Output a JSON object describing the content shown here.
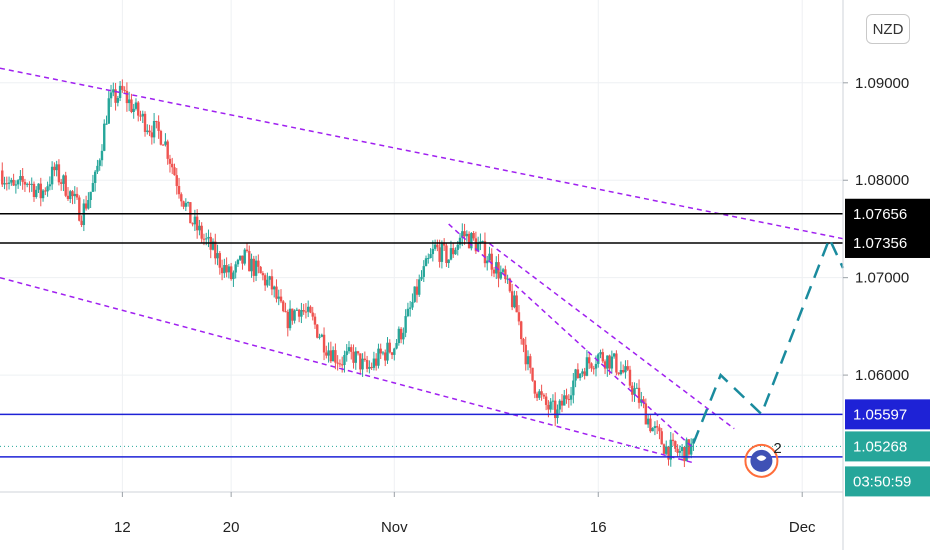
{
  "currency": "NZD",
  "chart_data": {
    "type": "candlestick",
    "x_axis": {
      "type": "date",
      "range": [
        "2022-10-03",
        "2022-12-04"
      ],
      "ticks": [
        {
          "date": "2022-10-12",
          "label": "12"
        },
        {
          "date": "2022-10-20",
          "label": "20"
        },
        {
          "date": "2022-11-01",
          "label": "Nov"
        },
        {
          "date": "2022-11-16",
          "label": "16"
        },
        {
          "date": "2022-12-01",
          "label": "Dec"
        }
      ]
    },
    "y_axis": {
      "range": [
        1.048,
        1.0985
      ],
      "ticks": [
        {
          "value": 1.09,
          "label": "1.09000"
        },
        {
          "value": 1.08,
          "label": "1.08000"
        },
        {
          "value": 1.07,
          "label": "1.07000"
        },
        {
          "value": 1.06,
          "label": "1.06000"
        }
      ]
    },
    "price_path": [
      [
        "2022-10-03",
        1.081
      ],
      [
        "2022-10-04",
        1.079
      ],
      [
        "2022-10-05",
        1.08
      ],
      [
        "2022-10-06",
        1.0785
      ],
      [
        "2022-10-07",
        1.081
      ],
      [
        "2022-10-08",
        1.079
      ],
      [
        "2022-10-09",
        1.0765
      ],
      [
        "2022-10-10",
        1.08
      ],
      [
        "2022-10-11",
        1.088
      ],
      [
        "2022-10-12",
        1.089
      ],
      [
        "2022-10-13",
        1.087
      ],
      [
        "2022-10-14",
        1.0855
      ],
      [
        "2022-10-15",
        1.0845
      ],
      [
        "2022-10-16",
        1.08
      ],
      [
        "2022-10-17",
        1.076
      ],
      [
        "2022-10-18",
        1.074
      ],
      [
        "2022-10-19",
        1.072
      ],
      [
        "2022-10-20",
        1.07
      ],
      [
        "2022-10-21",
        1.072
      ],
      [
        "2022-10-22",
        1.0705
      ],
      [
        "2022-10-23",
        1.069
      ],
      [
        "2022-10-24",
        1.0655
      ],
      [
        "2022-10-25",
        1.067
      ],
      [
        "2022-10-26",
        1.0655
      ],
      [
        "2022-10-27",
        1.063
      ],
      [
        "2022-10-28",
        1.0615
      ],
      [
        "2022-10-29",
        1.062
      ],
      [
        "2022-10-30",
        1.0605
      ],
      [
        "2022-10-31",
        1.062
      ],
      [
        "2022-11-01",
        1.063
      ],
      [
        "2022-11-02",
        1.066
      ],
      [
        "2022-11-03",
        1.07
      ],
      [
        "2022-11-04",
        1.073
      ],
      [
        "2022-11-05",
        1.072
      ],
      [
        "2022-11-06",
        1.0745
      ],
      [
        "2022-11-07",
        1.0735
      ],
      [
        "2022-11-08",
        1.072
      ],
      [
        "2022-11-09",
        1.07
      ],
      [
        "2022-11-10",
        1.0665
      ],
      [
        "2022-11-11",
        1.06
      ],
      [
        "2022-11-12",
        1.057
      ],
      [
        "2022-11-13",
        1.056
      ],
      [
        "2022-11-14",
        1.059
      ],
      [
        "2022-11-15",
        1.061
      ],
      [
        "2022-11-16",
        1.062
      ],
      [
        "2022-11-17",
        1.0615
      ],
      [
        "2022-11-18",
        1.06
      ],
      [
        "2022-11-19",
        1.0575
      ],
      [
        "2022-11-20",
        1.0545
      ],
      [
        "2022-11-21",
        1.0525
      ],
      [
        "2022-11-22",
        1.052
      ],
      [
        "2022-11-23",
        1.0527
      ]
    ],
    "horizontal_levels": [
      {
        "price": 1.07656,
        "label": "1.07656",
        "color": "#000000",
        "tag_bg": "#000000",
        "tag_fg": "#ffffff"
      },
      {
        "price": 1.07356,
        "label": "1.07356",
        "color": "#000000",
        "tag_bg": "#000000",
        "tag_fg": "#ffffff"
      },
      {
        "price": 1.05597,
        "label": "1.05597",
        "color": "#1e22d6",
        "tag_bg": "#1e22d6",
        "tag_fg": "#ffffff"
      },
      {
        "price": 1.0516,
        "label": "",
        "color": "#1e22d6"
      }
    ],
    "current_price": {
      "price": 1.05268,
      "label": "1.05268",
      "color": "#26a69a",
      "countdown": "03:50:59"
    },
    "trendlines": [
      {
        "from": [
          "2022-10-03",
          1.0915
        ],
        "to": [
          "2022-12-04",
          1.074
        ],
        "style": "dashed",
        "color": "#a020f0"
      },
      {
        "from": [
          "2022-10-03",
          1.07
        ],
        "to": [
          "2022-11-23",
          1.051
        ],
        "style": "dashed",
        "color": "#a020f0"
      },
      {
        "from": [
          "2022-11-08",
          1.0735
        ],
        "to": [
          "2022-11-26",
          1.0545
        ],
        "style": "dashed",
        "color": "#a020f0"
      },
      {
        "from": [
          "2022-11-05",
          1.0755
        ],
        "to": [
          "2022-11-23",
          1.0525
        ],
        "style": "dashed",
        "color": "#a020f0"
      }
    ],
    "projection": {
      "style": "dashed",
      "color": "#1a8b9e",
      "points": [
        [
          "2022-11-23",
          1.053
        ],
        [
          "2022-11-25",
          1.06
        ],
        [
          "2022-11-28",
          1.056
        ],
        [
          "2022-12-03",
          1.074
        ],
        [
          "2022-12-04",
          1.071
        ]
      ]
    },
    "marker": {
      "date": "2022-11-28",
      "price": 1.0512,
      "label": "2"
    },
    "colors": {
      "up": "#26a69a",
      "down": "#ef5350",
      "grid": "#eef0f3"
    },
    "grid": true
  }
}
